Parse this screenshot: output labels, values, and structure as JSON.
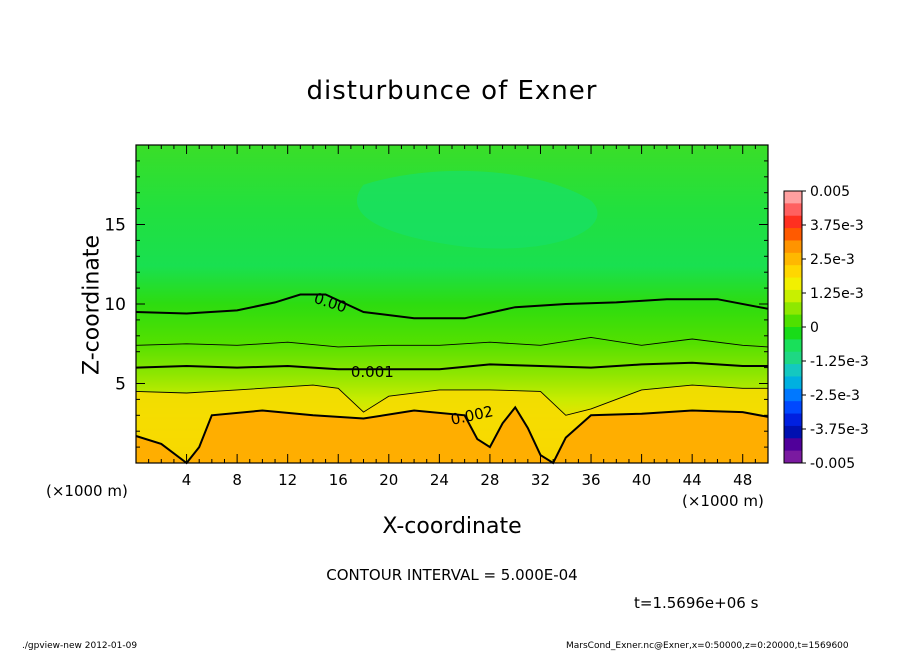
{
  "title": "disturbunce of Exner",
  "chart_data": {
    "type": "heatmap",
    "title": "disturbunce of Exner",
    "xlabel": "X-coordinate",
    "ylabel": "Z-coordinate",
    "x_unit_left": "(×1000 m)",
    "x_unit_right": "(×1000 m)",
    "xlim": [
      0,
      50
    ],
    "ylim": [
      0,
      20
    ],
    "x_ticks": [
      4,
      8,
      12,
      16,
      20,
      24,
      28,
      32,
      36,
      40,
      44,
      48
    ],
    "y_ticks": [
      5,
      10,
      15
    ],
    "colorbar": {
      "labels": [
        "0.005",
        "3.75e-3",
        "2.5e-3",
        "1.25e-3",
        "0",
        "-1.25e-3",
        "-2.5e-3",
        "-3.75e-3",
        "-0.005"
      ],
      "range": [
        -0.005,
        0.005
      ],
      "colors": [
        "#ffa0a0",
        "#ff6060",
        "#ff3020",
        "#ff5a00",
        "#ff9400",
        "#ffb800",
        "#ffd700",
        "#f2f000",
        "#c8f000",
        "#8ee800",
        "#4fe000",
        "#18dc18",
        "#19e05a",
        "#1ed883",
        "#14c8c0",
        "#00b0e0",
        "#0078ff",
        "#0048ff",
        "#0020e0",
        "#0010b0",
        "#50009a",
        "#7a1aa0"
      ]
    },
    "contours": [
      {
        "level": 0.0,
        "label": "0.00",
        "x": [
          0,
          4,
          8,
          11,
          13,
          15,
          18,
          22,
          26,
          30,
          34,
          38,
          42,
          46,
          50
        ],
        "y": [
          9.5,
          9.4,
          9.6,
          10.1,
          10.6,
          10.6,
          9.5,
          9.1,
          9.1,
          9.8,
          10.0,
          10.1,
          10.3,
          10.3,
          9.7
        ]
      },
      {
        "level": 0.0005,
        "label": "",
        "x": [
          0,
          4,
          8,
          12,
          16,
          20,
          24,
          28,
          32,
          36,
          40,
          44,
          48,
          50
        ],
        "y": [
          7.4,
          7.5,
          7.4,
          7.6,
          7.3,
          7.4,
          7.4,
          7.6,
          7.4,
          7.9,
          7.4,
          7.8,
          7.4,
          7.3
        ]
      },
      {
        "level": 0.001,
        "label": "0.001",
        "x": [
          0,
          4,
          8,
          12,
          16,
          20,
          24,
          28,
          32,
          36,
          40,
          44,
          48,
          50
        ],
        "y": [
          6.0,
          6.1,
          6.0,
          6.1,
          5.9,
          5.9,
          5.9,
          6.2,
          6.1,
          6.0,
          6.2,
          6.3,
          6.1,
          6.1
        ]
      },
      {
        "level": 0.0015,
        "label": "",
        "x": [
          0,
          4,
          8,
          12,
          14,
          16,
          18,
          20,
          24,
          28,
          32,
          34,
          36,
          40,
          44,
          48,
          50
        ],
        "y": [
          4.5,
          4.4,
          4.6,
          4.8,
          4.9,
          4.7,
          3.2,
          4.2,
          4.6,
          4.6,
          4.5,
          3.0,
          3.4,
          4.6,
          4.9,
          4.7,
          4.7
        ]
      },
      {
        "level": 0.002,
        "label": "0.002",
        "x": [
          0,
          2,
          4,
          5,
          6,
          10,
          14,
          18,
          22,
          26,
          27,
          28,
          29,
          30,
          31,
          32,
          33,
          34,
          36,
          40,
          44,
          48,
          50
        ],
        "y": [
          1.7,
          1.2,
          0.0,
          1.0,
          3.0,
          3.3,
          3.0,
          2.8,
          3.3,
          3.0,
          1.5,
          1.0,
          2.5,
          3.5,
          2.2,
          0.5,
          0.0,
          1.6,
          3.0,
          3.1,
          3.3,
          3.2,
          2.9
        ]
      }
    ],
    "contour_interval": "CONTOUR INTERVAL = 5.000E-04",
    "time": "t=1.5696e+06 s"
  },
  "footer": {
    "left": "./gpview-new  2012-01-09",
    "right": "MarsCond_Exner.nc@Exner,x=0:50000,z=0:20000,t=1569600"
  }
}
